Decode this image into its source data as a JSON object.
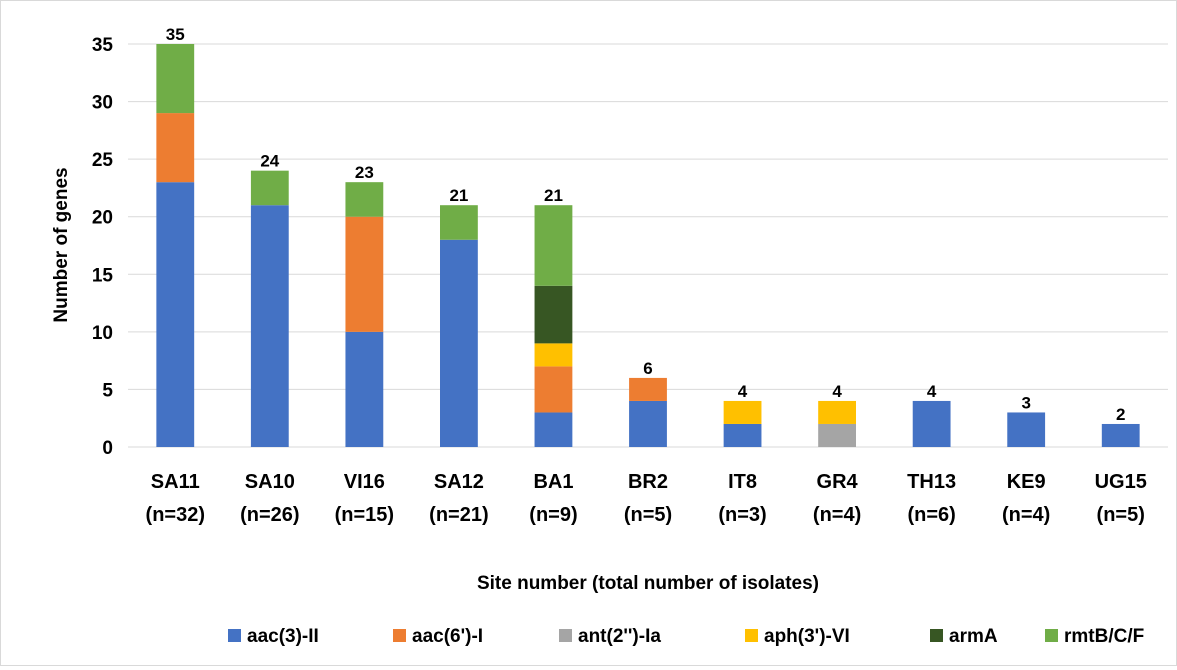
{
  "chart_data": {
    "type": "bar",
    "stacked": true,
    "title": "",
    "xlabel": "Site number (total number of isolates)",
    "ylabel": "Number of genes",
    "ylim": [
      0,
      35
    ],
    "yticks": [
      0,
      5,
      10,
      15,
      20,
      25,
      30,
      35
    ],
    "grid": true,
    "legend_position": "bottom",
    "categories": [
      [
        "SA11",
        "(n=32)"
      ],
      [
        "SA10",
        "(n=26)"
      ],
      [
        "VI16",
        "(n=15)"
      ],
      [
        "SA12",
        "(n=21)"
      ],
      [
        "BA1",
        "(n=9)"
      ],
      [
        "BR2",
        "(n=5)"
      ],
      [
        "IT8",
        "(n=3)"
      ],
      [
        "GR4",
        "(n=4)"
      ],
      [
        "TH13",
        "(n=6)"
      ],
      [
        "KE9",
        "(n=4)"
      ],
      [
        "UG15",
        "(n=5)"
      ]
    ],
    "series": [
      {
        "name": "aac(3)-II",
        "color": "#4472C4",
        "values": [
          23,
          21,
          10,
          18,
          3,
          4,
          2,
          0,
          4,
          3,
          2
        ]
      },
      {
        "name": "aac(6')-I",
        "color": "#ED7D31",
        "values": [
          6,
          0,
          10,
          0,
          4,
          2,
          0,
          0,
          0,
          0,
          0
        ]
      },
      {
        "name": "ant(2'')-Ia",
        "color": "#A5A5A5",
        "values": [
          0,
          0,
          0,
          0,
          0,
          0,
          0,
          2,
          0,
          0,
          0
        ]
      },
      {
        "name": "aph(3')-VI",
        "color": "#FFC000",
        "values": [
          0,
          0,
          0,
          0,
          2,
          0,
          2,
          2,
          0,
          0,
          0
        ]
      },
      {
        "name": "armA",
        "color": "#375623",
        "values": [
          0,
          0,
          0,
          0,
          5,
          0,
          0,
          0,
          0,
          0,
          0
        ]
      },
      {
        "name": "rmtB/C/F",
        "color": "#70AD47",
        "values": [
          6,
          3,
          3,
          3,
          7,
          0,
          0,
          0,
          0,
          0,
          0
        ]
      }
    ],
    "totals": [
      35,
      24,
      23,
      21,
      21,
      6,
      4,
      4,
      4,
      3,
      2
    ]
  }
}
